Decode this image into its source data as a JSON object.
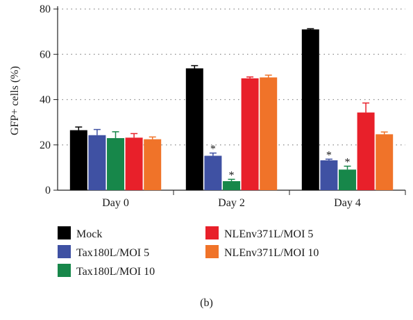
{
  "chart_data": {
    "type": "bar",
    "ylabel": "GFP+ cells (%)",
    "ylim": [
      0,
      80
    ],
    "yticks": [
      0,
      20,
      40,
      60,
      80
    ],
    "grid": true,
    "categories": [
      "Day 0",
      "Day 2",
      "Day 4"
    ],
    "series": [
      {
        "name": "Mock",
        "color": "#000000",
        "values": [
          26.5,
          53.8,
          71.0
        ],
        "errors": [
          1.4,
          1.2,
          0.3
        ],
        "significant": [
          false,
          false,
          false
        ]
      },
      {
        "name": "Tax180L/MOI 5",
        "color": "#3f51a3",
        "values": [
          24.3,
          15.2,
          13.2
        ],
        "errors": [
          2.5,
          1.2,
          0.5
        ],
        "significant": [
          false,
          true,
          true
        ]
      },
      {
        "name": "Tax180L/MOI 10",
        "color": "#17874a",
        "values": [
          23.0,
          4.0,
          9.1
        ],
        "errors": [
          2.8,
          0.8,
          1.5
        ],
        "significant": [
          false,
          true,
          true
        ]
      },
      {
        "name": "NLEnv371L/MOI 5",
        "color": "#e8202a",
        "values": [
          23.2,
          49.4,
          34.3
        ],
        "errors": [
          1.8,
          0.6,
          4.2
        ],
        "significant": [
          false,
          false,
          false
        ]
      },
      {
        "name": "NLEnv371L/MOI 10",
        "color": "#f07329",
        "values": [
          22.5,
          49.8,
          24.7
        ],
        "errors": [
          1.0,
          1.0,
          1.0
        ],
        "significant": [
          false,
          false,
          false
        ]
      }
    ],
    "significance_marker": "*",
    "legend_placement": "bottom"
  },
  "panel_label": "(b)"
}
